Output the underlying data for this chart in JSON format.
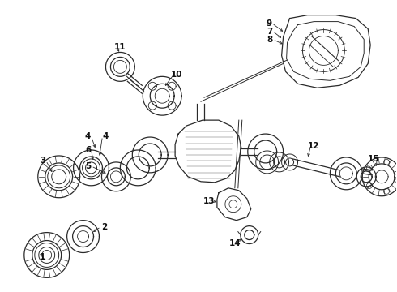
{
  "background_color": "#ffffff",
  "line_color": "#2a2a2a",
  "label_color": "#111111",
  "figsize": [
    4.9,
    3.6
  ],
  "dpi": 100
}
